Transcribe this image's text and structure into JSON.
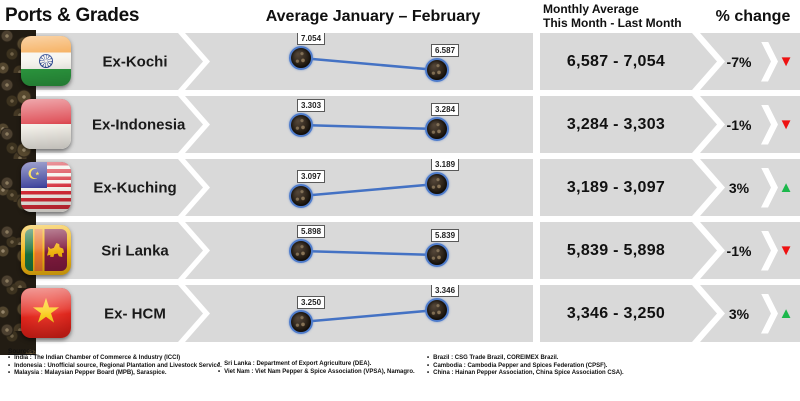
{
  "header": {
    "title": "Ports & Grades",
    "avg_column": "Average January – February",
    "monthly_line1": "Monthly Average",
    "monthly_line2": "This Month - Last Month",
    "pct_column": "% change"
  },
  "rows": [
    {
      "port": "Ex-Kochi",
      "flag": "india",
      "point_labels": [
        "7.054",
        "6.587"
      ],
      "monthly_range": "6,587 - 7,054",
      "pct_change": "-7%",
      "direction": "down"
    },
    {
      "port": "Ex-Indonesia",
      "flag": "indonesia",
      "point_labels": [
        "3.303",
        "3.284"
      ],
      "monthly_range": "3,284 - 3,303",
      "pct_change": "-1%",
      "direction": "down"
    },
    {
      "port": "Ex-Kuching",
      "flag": "malaysia",
      "point_labels": [
        "3.097",
        "3.189"
      ],
      "monthly_range": "3,189 - 3,097",
      "pct_change": "3%",
      "direction": "up"
    },
    {
      "port": "Sri Lanka",
      "flag": "srilanka",
      "point_labels": [
        "5.898",
        "5.839"
      ],
      "monthly_range": "5,839 - 5,898",
      "pct_change": "-1%",
      "direction": "down"
    },
    {
      "port": "Ex- HCM",
      "flag": "vietnam",
      "point_labels": [
        "3.250",
        "3.346"
      ],
      "monthly_range": "3,346 - 3,250",
      "pct_change": "3%",
      "direction": "up"
    }
  ],
  "chart_data": {
    "type": "line",
    "title": "Average January – February",
    "x": [
      "January",
      "February"
    ],
    "series": [
      {
        "name": "Ex-Kochi",
        "values": [
          7054,
          6587
        ],
        "pct_change": -7
      },
      {
        "name": "Ex-Indonesia",
        "values": [
          3303,
          3284
        ],
        "pct_change": -1
      },
      {
        "name": "Ex-Kuching",
        "values": [
          3097,
          3189
        ],
        "pct_change": 3
      },
      {
        "name": "Sri Lanka",
        "values": [
          5898,
          5839
        ],
        "pct_change": -1
      },
      {
        "name": "Ex- HCM",
        "values": [
          3250,
          3346
        ],
        "pct_change": 3
      }
    ],
    "legend": "none",
    "gridlines": false,
    "marker_style": "peppercorn-photo-dot",
    "line_color": "#4472C4"
  },
  "colors": {
    "bar_gray": "#D9D9D9",
    "accent_blue": "#4472C4",
    "up_green": "#1CB84C",
    "down_red": "#EE1111"
  },
  "sources": {
    "heading": "Sources:",
    "columns": [
      {
        "items": [
          "India : The Indian Chamber of Commerce & Industry (ICCI)",
          "Indonesia : Unofficial source, Regional Plantation and Livestock Service.",
          "Malaysia : Malaysian Pepper Board (MPB), Saraspice."
        ]
      },
      {
        "items": [
          "Sri Lanka : Department of Export Agriculture (DEA).",
          "Viet Nam : Viet Nam Pepper & Spice Association (VPSA), Namagro."
        ]
      },
      {
        "items": [
          "Brazil : CSG Trade Brazil, COREIMEX Brazil.",
          "Cambodia : Cambodia Pepper and Spices Federation (CPSF).",
          "China : Hainan Pepper Association, China Spice Association CSA)."
        ]
      }
    ]
  }
}
